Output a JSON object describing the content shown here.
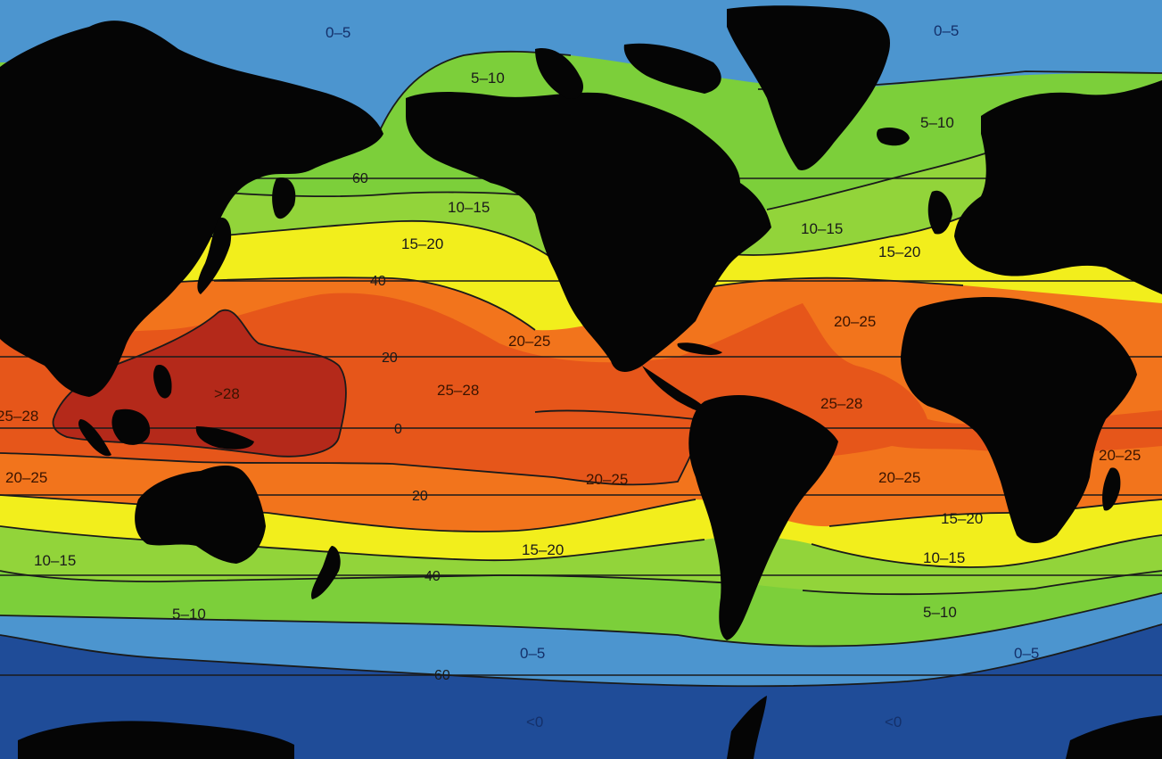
{
  "colors": {
    "lt0": "#1f4c98",
    "z0_5": "#4c95cf",
    "z5_10": "#7ccf3a",
    "z10_15": "#92d43a",
    "z15_20": "#f2ee1c",
    "z20_25": "#f2741c",
    "z25_28": "#e6561a",
    "zgt28": "#b4291a",
    "land": "#050505"
  },
  "latitudes": {
    "n60": "60",
    "n40": "40",
    "n20": "20",
    "eq": "0",
    "s20": "20",
    "s40": "40",
    "s60": "60"
  },
  "zones": {
    "nw_0_5": "0–5",
    "ne_0_5": "0–5",
    "n_pac_5_10": "5–10",
    "n_atl_5_10": "5–10",
    "n_pac_10_15": "10–15",
    "n_atl_10_15": "10–15",
    "n_pac_15_20": "15–20",
    "n_atl_15_20": "15–20",
    "n_pac_20_25": "20–25",
    "n_atl_20_25": "20–25",
    "w_pac_gt28": ">28",
    "pac_25_28": "25–28",
    "atl_25_28": "25–28",
    "w_edge_25_28": "25–28",
    "sw_20_25": "20–25",
    "s_pac_20_25": "20–25",
    "s_atl_20_25": "20–25",
    "e_edge_20_25": "20–25",
    "s_pac_15_20": "15–20",
    "s_atl_15_20": "15–20",
    "sw_10_15": "10–15",
    "s_atl_10_15": "10–15",
    "s_pac_5_10": "5–10",
    "s_atl_5_10": "5–10",
    "s_pac_0_5": "0–5",
    "s_atl_0_5": "0–5",
    "s_pac_lt0": "<0",
    "s_atl_lt0": "<0"
  }
}
